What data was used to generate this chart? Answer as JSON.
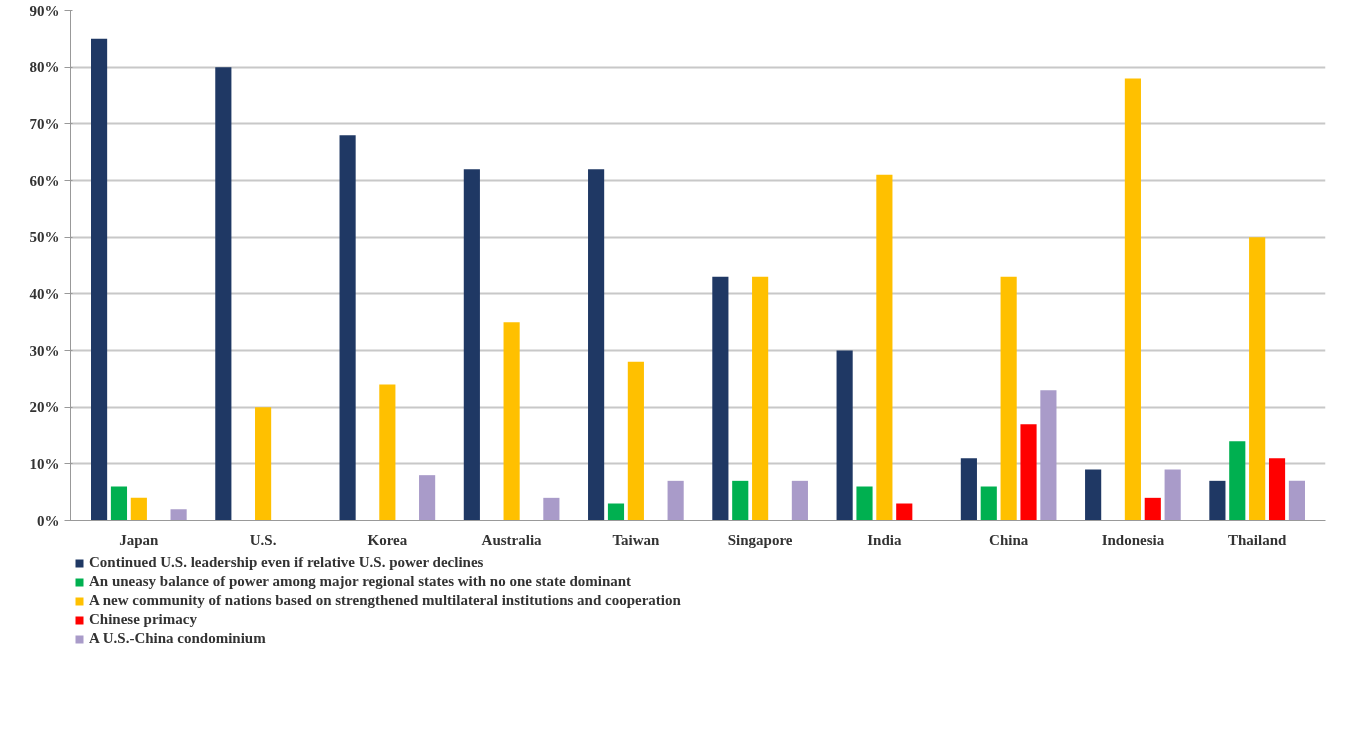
{
  "chart_data": {
    "type": "bar",
    "categories": [
      "Japan",
      "U.S.",
      "Korea",
      "Australia",
      "Taiwan",
      "Singapore",
      "India",
      "China",
      "Indonesia",
      "Thailand"
    ],
    "series": [
      {
        "name": "Continued U.S. leadership even if relative U.S. power declines",
        "color": "#1f3864",
        "values": [
          85,
          80,
          68,
          62,
          62,
          43,
          30,
          11,
          9,
          7
        ]
      },
      {
        "name": "An uneasy balance of power among major regional states with no one state dominant",
        "color": "#00b050",
        "values": [
          6,
          null,
          null,
          null,
          3,
          7,
          6,
          6,
          null,
          14
        ]
      },
      {
        "name": "A new community of nations based on strengthened multilateral institutions and cooperation",
        "color": "#ffc000",
        "values": [
          4,
          20,
          24,
          35,
          28,
          43,
          61,
          43,
          78,
          50
        ]
      },
      {
        "name": "Chinese primacy",
        "color": "#ff0000",
        "values": [
          null,
          null,
          null,
          null,
          null,
          null,
          3,
          17,
          4,
          11
        ]
      },
      {
        "name": "A U.S.-China condominium",
        "color": "#a99bc9",
        "values": [
          2,
          null,
          8,
          4,
          7,
          7,
          null,
          23,
          9,
          7
        ]
      }
    ],
    "ylim": [
      0,
      90
    ],
    "yticks": [
      {
        "value": 0,
        "label": "0%"
      },
      {
        "value": 10,
        "label": "10%"
      },
      {
        "value": 20,
        "label": "20%"
      },
      {
        "value": 30,
        "label": "30%"
      },
      {
        "value": 40,
        "label": "40%"
      },
      {
        "value": 50,
        "label": "50%"
      },
      {
        "value": 60,
        "label": "60%"
      },
      {
        "value": 70,
        "label": "70%"
      },
      {
        "value": 80,
        "label": "80%"
      },
      {
        "value": 90,
        "label": "90%"
      }
    ],
    "grid": "y",
    "legend": "bottom left"
  }
}
